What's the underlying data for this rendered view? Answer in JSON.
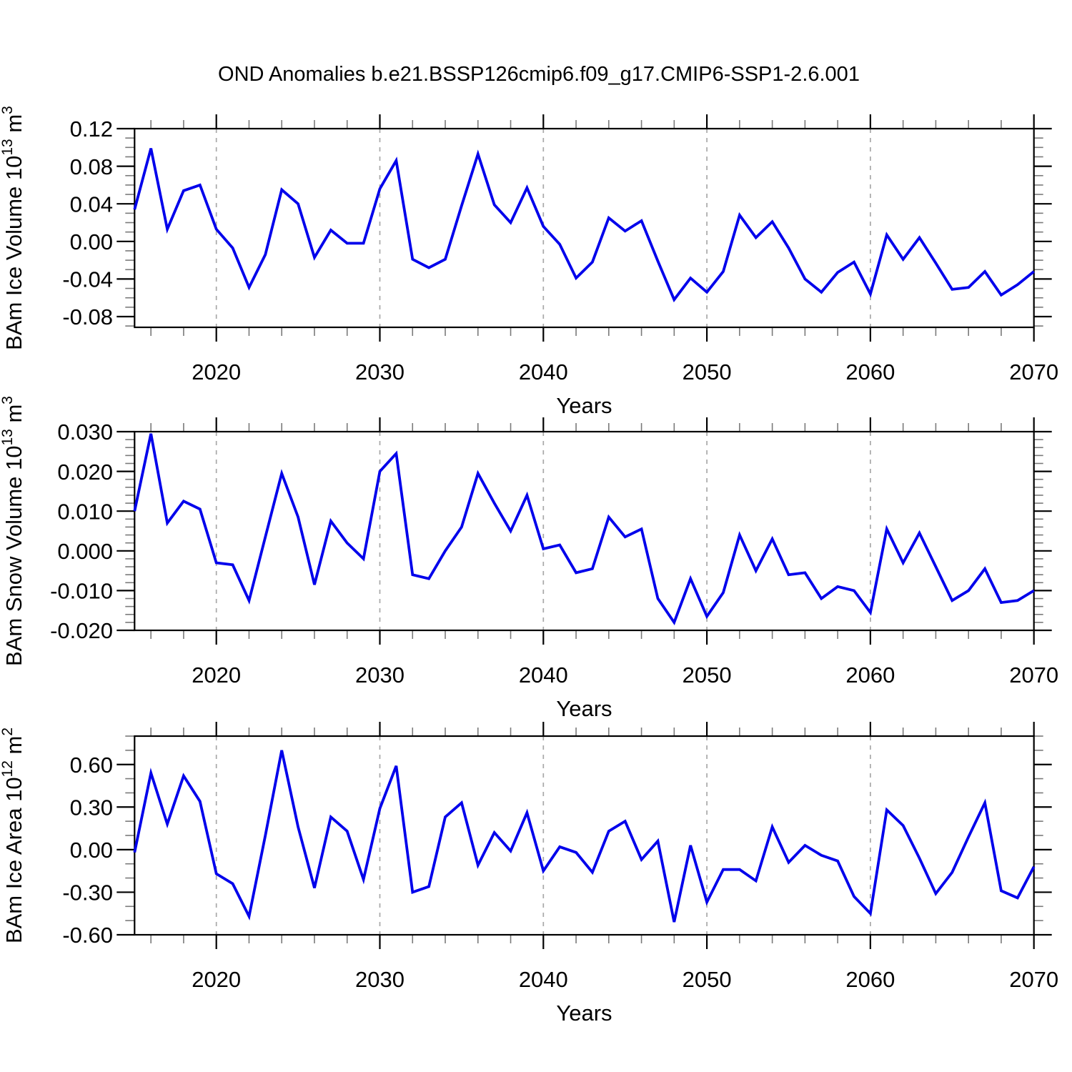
{
  "title": "OND Anomalies b.e21.BSSP126cmip6.f09_g17.CMIP6-SSP1-2.6.001",
  "line_color": "#0000EB",
  "grid_color": "#a8a8a8",
  "axis_color": "#000000",
  "minor_tick_color": "#7a7a7a",
  "chart_data": [
    {
      "type": "line",
      "name": "bam-ice-volume",
      "ylabel_parts": [
        {
          "t": "BAm Ice Volume 10"
        },
        {
          "t": "13",
          "sup": true
        },
        {
          "t": " m"
        },
        {
          "t": "3",
          "sup": true
        }
      ],
      "xlabel": "Years",
      "x_start": 2015,
      "x_end": 2070,
      "x_step": 1,
      "x_major_ticks": [
        2020,
        2030,
        2040,
        2050,
        2060,
        2070
      ],
      "x_tick_labels": [
        "2020",
        "2030",
        "2040",
        "2050",
        "2060",
        "2070"
      ],
      "x_minor_step": 2,
      "gridlines_x": [
        2020,
        2030,
        2040,
        2050,
        2060
      ],
      "ylim": [
        -0.0914,
        0.12
      ],
      "y_major_ticks": [
        0.12,
        0.08,
        0.04,
        0.0,
        -0.04,
        -0.08
      ],
      "y_tick_labels": [
        "0.12",
        "0.08",
        "0.04",
        "0.00",
        "-0.04",
        "-0.08"
      ],
      "y_minor_step": 0.01,
      "grid": true,
      "legend": "none",
      "values": [
        0.034,
        0.099,
        0.013,
        0.054,
        0.06,
        0.013,
        -0.007,
        -0.049,
        -0.014,
        0.055,
        0.04,
        -0.017,
        0.012,
        -0.002,
        -0.002,
        0.056,
        0.086,
        -0.019,
        -0.028,
        -0.019,
        0.038,
        0.093,
        0.039,
        0.02,
        0.057,
        0.016,
        -0.003,
        -0.039,
        -0.022,
        0.025,
        0.011,
        0.022,
        -0.021,
        -0.062,
        -0.039,
        -0.054,
        -0.032,
        0.028,
        0.004,
        0.021,
        -0.007,
        -0.04,
        -0.054,
        -0.033,
        -0.022,
        -0.056,
        0.007,
        -0.019,
        0.004,
        -0.023,
        -0.051,
        -0.049,
        -0.032,
        -0.057,
        -0.046,
        -0.032
      ]
    },
    {
      "type": "line",
      "name": "bam-snow-volume",
      "ylabel_parts": [
        {
          "t": "BAm Snow Volume 10"
        },
        {
          "t": "13",
          "sup": true
        },
        {
          "t": " m"
        },
        {
          "t": "3",
          "sup": true
        }
      ],
      "xlabel": "Years",
      "x_start": 2015,
      "x_end": 2070,
      "x_step": 1,
      "x_major_ticks": [
        2020,
        2030,
        2040,
        2050,
        2060,
        2070
      ],
      "x_tick_labels": [
        "2020",
        "2030",
        "2040",
        "2050",
        "2060",
        "2070"
      ],
      "x_minor_step": 2,
      "gridlines_x": [
        2020,
        2030,
        2040,
        2050,
        2060
      ],
      "ylim": [
        -0.02,
        0.03
      ],
      "y_major_ticks": [
        0.03,
        0.02,
        0.01,
        0.0,
        -0.01,
        -0.02
      ],
      "y_tick_labels": [
        "0.030",
        "0.020",
        "0.010",
        "0.000",
        "-0.010",
        "-0.020"
      ],
      "y_minor_step": 0.002,
      "grid": true,
      "legend": "none",
      "values": [
        0.01,
        0.0295,
        0.007,
        0.0125,
        0.0105,
        -0.003,
        -0.0035,
        -0.0125,
        0.0035,
        0.0195,
        0.0085,
        -0.0085,
        0.0075,
        0.002,
        -0.002,
        0.02,
        0.0245,
        -0.006,
        -0.007,
        0.0,
        0.006,
        0.0195,
        0.012,
        0.005,
        0.014,
        0.0005,
        0.0015,
        -0.0055,
        -0.0045,
        0.0085,
        0.0035,
        0.0055,
        -0.012,
        -0.018,
        -0.007,
        -0.0165,
        -0.0105,
        0.004,
        -0.005,
        0.003,
        -0.006,
        -0.0055,
        -0.012,
        -0.009,
        -0.01,
        -0.0155,
        0.0055,
        -0.003,
        0.0045,
        -0.004,
        -0.0125,
        -0.01,
        -0.0045,
        -0.013,
        -0.0125,
        -0.01
      ]
    },
    {
      "type": "line",
      "name": "bam-ice-area",
      "ylabel_parts": [
        {
          "t": "BAm Ice Area 10"
        },
        {
          "t": "12",
          "sup": true
        },
        {
          "t": " m"
        },
        {
          "t": "2",
          "sup": true
        }
      ],
      "xlabel": "Years",
      "x_start": 2015,
      "x_end": 2070,
      "x_step": 1,
      "x_major_ticks": [
        2020,
        2030,
        2040,
        2050,
        2060,
        2070
      ],
      "x_tick_labels": [
        "2020",
        "2030",
        "2040",
        "2050",
        "2060",
        "2070"
      ],
      "x_minor_step": 2,
      "gridlines_x": [
        2020,
        2030,
        2040,
        2050,
        2060
      ],
      "ylim": [
        -0.6,
        0.8
      ],
      "y_major_ticks": [
        0.6,
        0.3,
        0.0,
        -0.3,
        -0.6
      ],
      "y_tick_labels": [
        "0.60",
        "0.30",
        "0.00",
        "-0.30",
        "-0.60"
      ],
      "y_minor_step": 0.1,
      "grid": true,
      "legend": "none",
      "values": [
        -0.02,
        0.54,
        0.18,
        0.52,
        0.34,
        -0.17,
        -0.24,
        -0.47,
        0.1,
        0.7,
        0.16,
        -0.27,
        0.23,
        0.13,
        -0.21,
        0.29,
        0.59,
        -0.3,
        -0.26,
        0.23,
        0.33,
        -0.11,
        0.12,
        -0.01,
        0.26,
        -0.15,
        0.02,
        -0.02,
        -0.16,
        0.13,
        0.2,
        -0.07,
        0.06,
        -0.51,
        0.03,
        -0.37,
        -0.14,
        -0.14,
        -0.22,
        0.16,
        -0.09,
        0.03,
        -0.04,
        -0.08,
        -0.33,
        -0.45,
        0.28,
        0.17,
        -0.06,
        -0.31,
        -0.16,
        0.09,
        0.33,
        -0.29,
        -0.34,
        -0.12
      ]
    }
  ]
}
